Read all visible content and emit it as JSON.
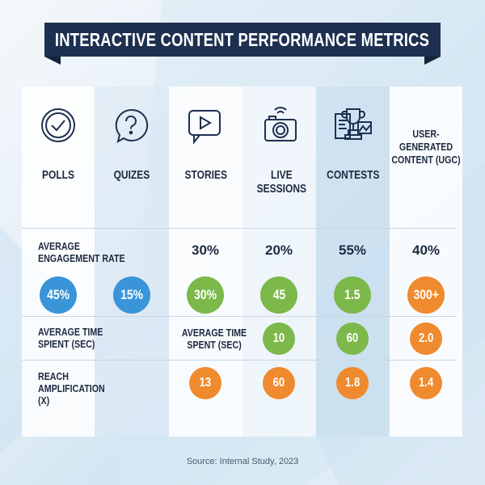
{
  "title": "INTERACTIVE CONTENT PERFORMANCE METRICS",
  "source": "Source: Internal Study, 2023",
  "colors": {
    "banner": "#1d3050",
    "blue": "#3a94d8",
    "green": "#7cb84a",
    "orange": "#f08a2e",
    "text": "#1d2b40"
  },
  "columns": [
    {
      "label": "POLLS",
      "icon": "check-circle-icon"
    },
    {
      "label": "QUIZES",
      "icon": "question-bubble-icon"
    },
    {
      "label": "STORIES",
      "icon": "play-bubble-icon"
    },
    {
      "label": "LIVE SESSIONS",
      "icon": "camera-broadcast-icon"
    },
    {
      "label": "CONTESTS",
      "icon": "trophy-icon"
    },
    {
      "label": "USER-GENERATED CONTENT (UGC)",
      "icon": ""
    }
  ],
  "rows": {
    "engagement": {
      "label": "AVERAGE ENGAGEMENT RATE",
      "top_values": [
        "",
        "",
        "30%",
        "20%",
        "55%",
        "40%"
      ],
      "circles": [
        {
          "v": "45%",
          "c": "blue"
        },
        {
          "v": "15%",
          "c": "blue"
        },
        {
          "v": "30%",
          "c": "green"
        },
        {
          "v": "45",
          "c": "green"
        },
        {
          "v": "1.5",
          "c": "green"
        },
        {
          "v": "300+",
          "c": "orange"
        }
      ]
    },
    "time": {
      "label": "AVERAGE TIME SPIENT (SEC)",
      "inline_label": "AVERAGE TIME SPENT (SEC)",
      "circles": [
        null,
        null,
        null,
        {
          "v": "10",
          "c": "green"
        },
        {
          "v": "60",
          "c": "green"
        },
        {
          "v": "2.0",
          "c": "orange"
        }
      ]
    },
    "reach": {
      "label": "REACH AMPLIFICATION (X)",
      "circles": [
        null,
        null,
        {
          "v": "13",
          "c": "orange"
        },
        {
          "v": "60",
          "c": "orange"
        },
        {
          "v": "1.8",
          "c": "orange"
        },
        {
          "v": "1.4",
          "c": "orange"
        }
      ]
    }
  },
  "chart_data": {
    "type": "table",
    "title": "INTERACTIVE CONTENT PERFORMANCE METRICS",
    "columns": [
      "POLLS",
      "QUIZES",
      "STORIES",
      "LIVE SESSIONS",
      "CONTESTS",
      "USER-GENERATED CONTENT (UGC)"
    ],
    "rows": [
      {
        "name": "AVERAGE ENGAGEMENT RATE",
        "header_values": [
          null,
          null,
          "30%",
          "20%",
          "55%",
          "40%"
        ],
        "values": [
          "45%",
          "15%",
          "30%",
          "45",
          "1.5",
          "300+"
        ]
      },
      {
        "name": "AVERAGE TIME SPIENT (SEC)",
        "values": [
          null,
          null,
          "AVERAGE TIME SPENT (SEC)",
          "10",
          "60",
          "2.0"
        ]
      },
      {
        "name": "REACH AMPLIFICATION (X)",
        "values": [
          null,
          null,
          "13",
          "60",
          "1.8",
          "1.4"
        ]
      }
    ]
  }
}
